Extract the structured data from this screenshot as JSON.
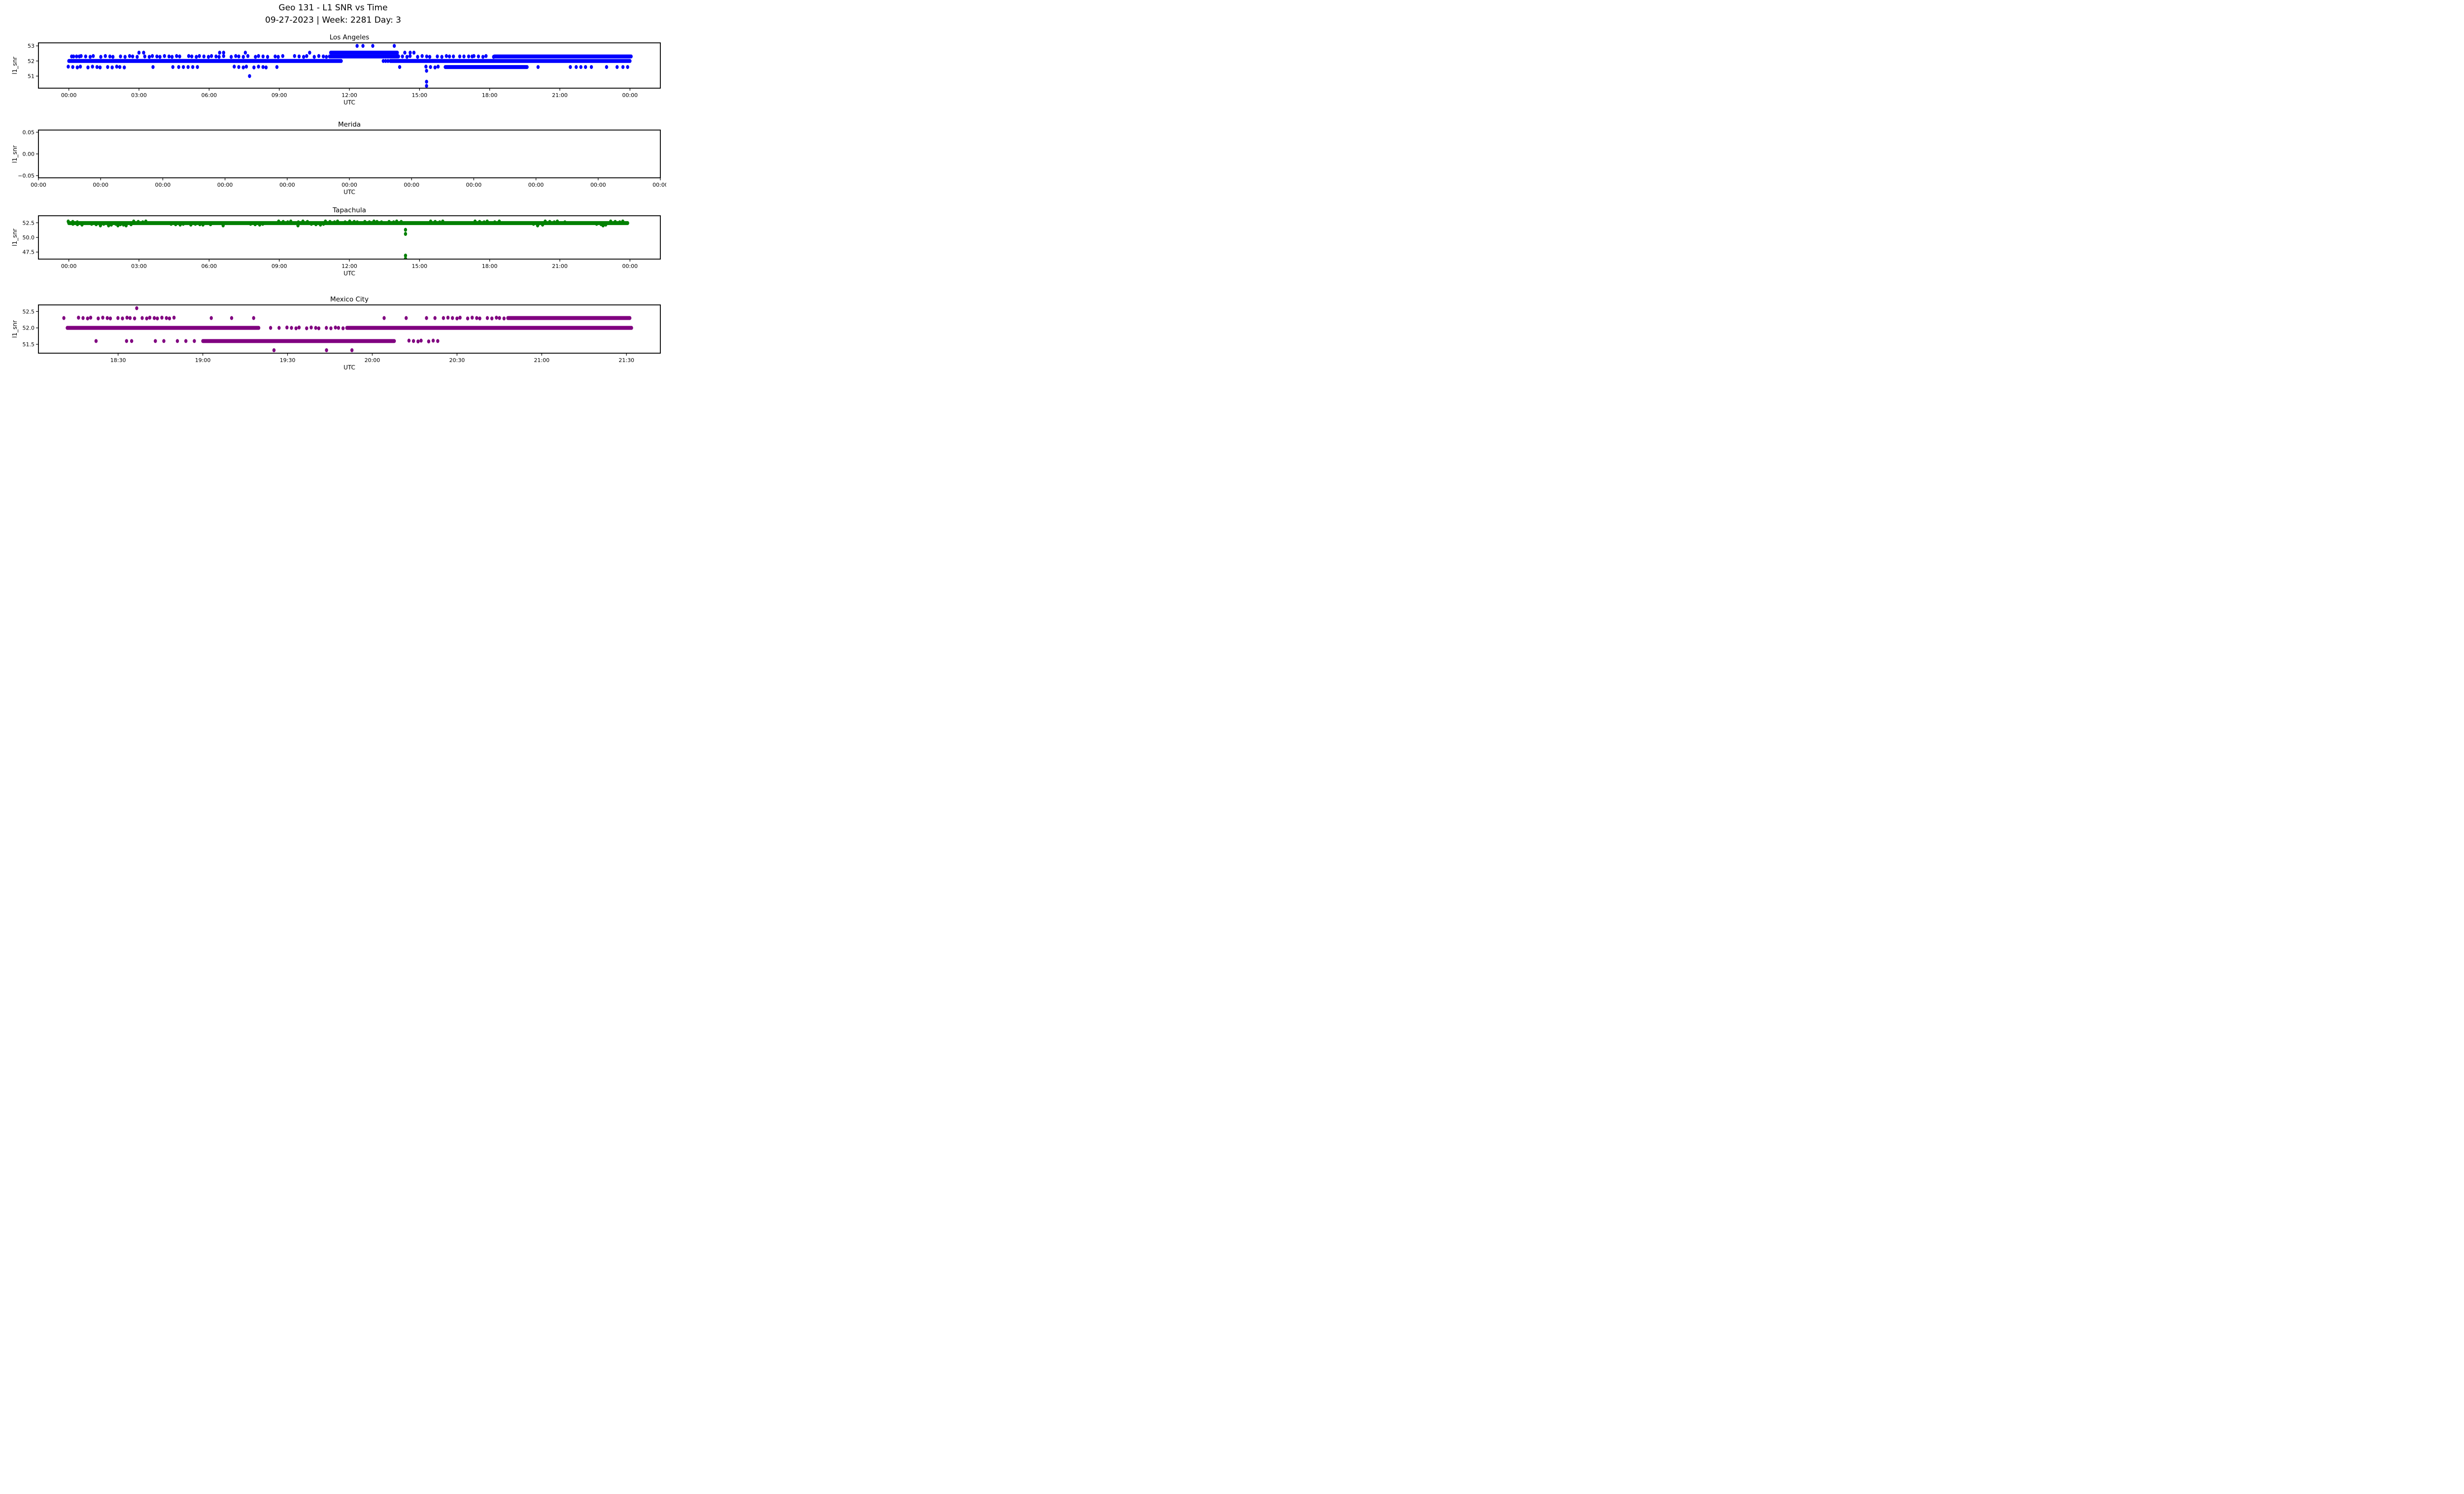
{
  "header": {
    "title_line1": "Geo 131 - L1 SNR vs Time",
    "title_line2": "09-27-2023 | Week: 2281 Day: 3"
  },
  "chart_data": [
    {
      "type": "scatter",
      "title": "Los Angeles",
      "xlabel": "UTC",
      "ylabel": "l1_snr",
      "color": "#0000ff",
      "x_domain": [
        -1.3,
        25.3
      ],
      "x_ticks": [
        {
          "h": 0,
          "label": "00:00"
        },
        {
          "h": 3,
          "label": "03:00"
        },
        {
          "h": 6,
          "label": "06:00"
        },
        {
          "h": 9,
          "label": "09:00"
        },
        {
          "h": 12,
          "label": "12:00"
        },
        {
          "h": 15,
          "label": "15:00"
        },
        {
          "h": 18,
          "label": "18:00"
        },
        {
          "h": 21,
          "label": "21:00"
        },
        {
          "h": 24,
          "label": "00:00"
        }
      ],
      "y_domain": [
        50.2,
        53.2
      ],
      "y_ticks": [
        {
          "v": 53,
          "label": "53"
        },
        {
          "v": 52,
          "label": "52"
        },
        {
          "v": 51,
          "label": "51"
        }
      ],
      "bands": [
        {
          "y": 53.0,
          "dots": [
            12.33,
            12.58,
            13.0,
            13.92
          ]
        },
        {
          "y": 52.55,
          "solid": [
            [
              11.2,
              14.05
            ]
          ],
          "dots": [
            3.0,
            3.2,
            6.45,
            6.62,
            7.55,
            10.3,
            14.37,
            14.6,
            14.76
          ]
        },
        {
          "y": 52.3,
          "solid": [
            [
              11.15,
              14.1
            ],
            [
              18.2,
              24.05
            ]
          ],
          "speckled": [
            [
              0.55,
              9.28
            ],
            [
              9.68,
              11.15
            ],
            [
              14.1,
              16.2
            ],
            [
              17.35,
              18.2
            ]
          ],
          "dots": [
            0.12,
            0.2,
            0.33,
            0.45,
            16.28,
            16.45,
            16.72,
            16.9,
            17.1,
            17.25
          ]
        },
        {
          "y": 52.0,
          "solid": [
            [
              0.0,
              11.65
            ],
            [
              13.75,
              24.0
            ]
          ],
          "dots": [
            13.45,
            13.55,
            13.65
          ]
        },
        {
          "y": 51.6,
          "solid": [
            [
              16.1,
              19.6
            ]
          ],
          "speckled": [
            [
              0.0,
              2.55
            ],
            [
              7.1,
              8.5
            ],
            [
              15.3,
              16.1
            ]
          ],
          "dots": [
            3.6,
            4.45,
            4.7,
            4.9,
            5.1,
            5.3,
            5.5,
            8.9,
            14.15,
            20.07,
            21.45,
            21.7,
            21.9,
            22.1,
            22.35,
            23.0,
            23.45,
            23.7,
            23.9
          ]
        }
      ],
      "points": [
        [
          7.73,
          51.0
        ],
        [
          15.3,
          51.35
        ],
        [
          15.3,
          50.63
        ],
        [
          15.3,
          50.35
        ]
      ]
    },
    {
      "type": "scatter",
      "title": "Merida",
      "xlabel": "UTC",
      "ylabel": "l1_snr",
      "color": "#0000ff",
      "x_domain": [
        0,
        10
      ],
      "x_ticks": [
        {
          "h": 0,
          "label": "00:00"
        },
        {
          "h": 1,
          "label": "00:00"
        },
        {
          "h": 2,
          "label": "00:00"
        },
        {
          "h": 3,
          "label": "00:00"
        },
        {
          "h": 4,
          "label": "00:00"
        },
        {
          "h": 5,
          "label": "00:00"
        },
        {
          "h": 6,
          "label": "00:00"
        },
        {
          "h": 7,
          "label": "00:00"
        },
        {
          "h": 8,
          "label": "00:00"
        },
        {
          "h": 9,
          "label": "00:00"
        },
        {
          "h": 10,
          "label": "00:00"
        }
      ],
      "y_domain": [
        -0.055,
        0.055
      ],
      "y_ticks": [
        {
          "v": 0.05,
          "label": "0.05"
        },
        {
          "v": 0.0,
          "label": "0.00"
        },
        {
          "v": -0.05,
          "label": "−0.05"
        }
      ],
      "bands": [],
      "points": []
    },
    {
      "type": "scatter",
      "title": "Tapachula",
      "xlabel": "UTC",
      "ylabel": "l1_snr",
      "color": "#008000",
      "x_domain": [
        -1.3,
        25.3
      ],
      "x_ticks": [
        {
          "h": 0,
          "label": "00:00"
        },
        {
          "h": 3,
          "label": "03:00"
        },
        {
          "h": 6,
          "label": "06:00"
        },
        {
          "h": 9,
          "label": "09:00"
        },
        {
          "h": 12,
          "label": "12:00"
        },
        {
          "h": 15,
          "label": "15:00"
        },
        {
          "h": 18,
          "label": "18:00"
        },
        {
          "h": 21,
          "label": "21:00"
        },
        {
          "h": 24,
          "label": "00:00"
        }
      ],
      "y_domain": [
        46.3,
        53.7
      ],
      "y_ticks": [
        {
          "v": 52.5,
          "label": "52.5"
        },
        {
          "v": 50.0,
          "label": "50.0"
        },
        {
          "v": 47.5,
          "label": "47.5"
        }
      ],
      "bands": [
        {
          "y": 52.65,
          "speckled": [
            [
              0.0,
              0.4
            ],
            [
              2.8,
              3.5
            ],
            [
              9.0,
              10.2
            ],
            [
              11.0,
              14.3
            ],
            [
              15.5,
              16.2
            ],
            [
              17.4,
              18.5
            ],
            [
              20.4,
              21.3
            ],
            [
              23.2,
              23.85
            ]
          ]
        },
        {
          "y": 52.45,
          "solid": [
            [
              0.0,
              23.9
            ]
          ]
        },
        {
          "y": 52.25,
          "speckled": [
            [
              0.2,
              0.6
            ],
            [
              1.0,
              2.7
            ],
            [
              4.4,
              6.2
            ],
            [
              7.8,
              8.4
            ],
            [
              10.4,
              11.0
            ],
            [
              19.9,
              20.3
            ],
            [
              22.6,
              23.0
            ]
          ]
        },
        {
          "y": 52.05,
          "dots": [
            1.35,
            1.7,
            2.1,
            2.45,
            6.6,
            9.8,
            20.05,
            22.85
          ]
        }
      ],
      "points": [
        [
          14.4,
          51.3
        ],
        [
          14.4,
          50.6
        ],
        [
          14.4,
          46.9
        ],
        [
          14.4,
          46.35
        ]
      ]
    },
    {
      "type": "scatter",
      "title": "Mexico City",
      "xlabel": "UTC",
      "ylabel": "l1_snr",
      "color": "#800080",
      "x_domain": [
        18.03,
        21.7
      ],
      "x_ticks": [
        {
          "h": 18.5,
          "label": "18:30"
        },
        {
          "h": 19.0,
          "label": "19:00"
        },
        {
          "h": 19.5,
          "label": "19:30"
        },
        {
          "h": 20.0,
          "label": "20:00"
        },
        {
          "h": 20.5,
          "label": "20:30"
        },
        {
          "h": 21.0,
          "label": "21:00"
        },
        {
          "h": 21.5,
          "label": "21:30"
        }
      ],
      "y_domain": [
        51.23,
        52.7
      ],
      "y_ticks": [
        {
          "v": 52.5,
          "label": "52.5"
        },
        {
          "v": 52.0,
          "label": "52.0"
        },
        {
          "v": 51.5,
          "label": "51.5"
        }
      ],
      "bands": [
        {
          "y": 52.6,
          "dots": [
            18.61
          ]
        },
        {
          "y": 52.3,
          "solid": [
            [
              20.8,
              21.52
            ]
          ],
          "speckled": [
            [
              18.27,
              18.85
            ],
            [
              20.45,
              20.8
            ]
          ],
          "dots": [
            18.18,
            19.05,
            19.17,
            19.3,
            20.07,
            20.2,
            20.32,
            20.37,
            20.42
          ]
        },
        {
          "y": 52.0,
          "solid": [
            [
              18.2,
              19.33
            ],
            [
              19.85,
              21.53
            ]
          ],
          "speckled": [
            [
              19.5,
              19.83
            ]
          ],
          "dots": [
            19.4,
            19.45
          ]
        },
        {
          "y": 51.6,
          "solid": [
            [
              19.0,
              20.13
            ]
          ],
          "speckled": [
            [
              20.22,
              20.4
            ]
          ],
          "dots": [
            18.37,
            18.55,
            18.58,
            18.72,
            18.77,
            18.85,
            18.9,
            18.95
          ]
        }
      ],
      "points": [
        [
          19.42,
          51.32
        ],
        [
          19.73,
          51.32
        ],
        [
          19.88,
          51.32
        ]
      ]
    }
  ]
}
